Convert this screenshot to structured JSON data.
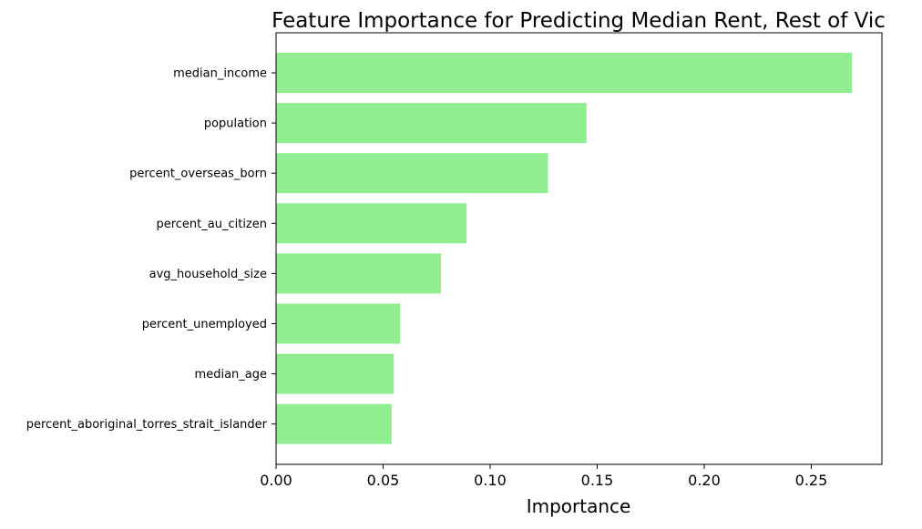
{
  "chart_data": {
    "type": "bar",
    "orientation": "horizontal",
    "title": "Feature Importance for Predicting Median Rent, Rest of Vic",
    "xlabel": "Importance",
    "ylabel": "",
    "categories": [
      "median_income",
      "population",
      "percent_overseas_born",
      "percent_au_citizen",
      "avg_household_size",
      "percent_unemployed",
      "median_age",
      "percent_aboriginal_torres_strait_islander"
    ],
    "values": [
      0.269,
      0.145,
      0.127,
      0.089,
      0.077,
      0.058,
      0.055,
      0.054
    ],
    "xlim": [
      0,
      0.283
    ],
    "xticks": [
      0.0,
      0.05,
      0.1,
      0.15,
      0.2,
      0.25
    ],
    "xtick_labels": [
      "0.00",
      "0.05",
      "0.10",
      "0.15",
      "0.20",
      "0.25"
    ],
    "bar_color": "#90ee90",
    "grid": false,
    "legend": "none"
  }
}
